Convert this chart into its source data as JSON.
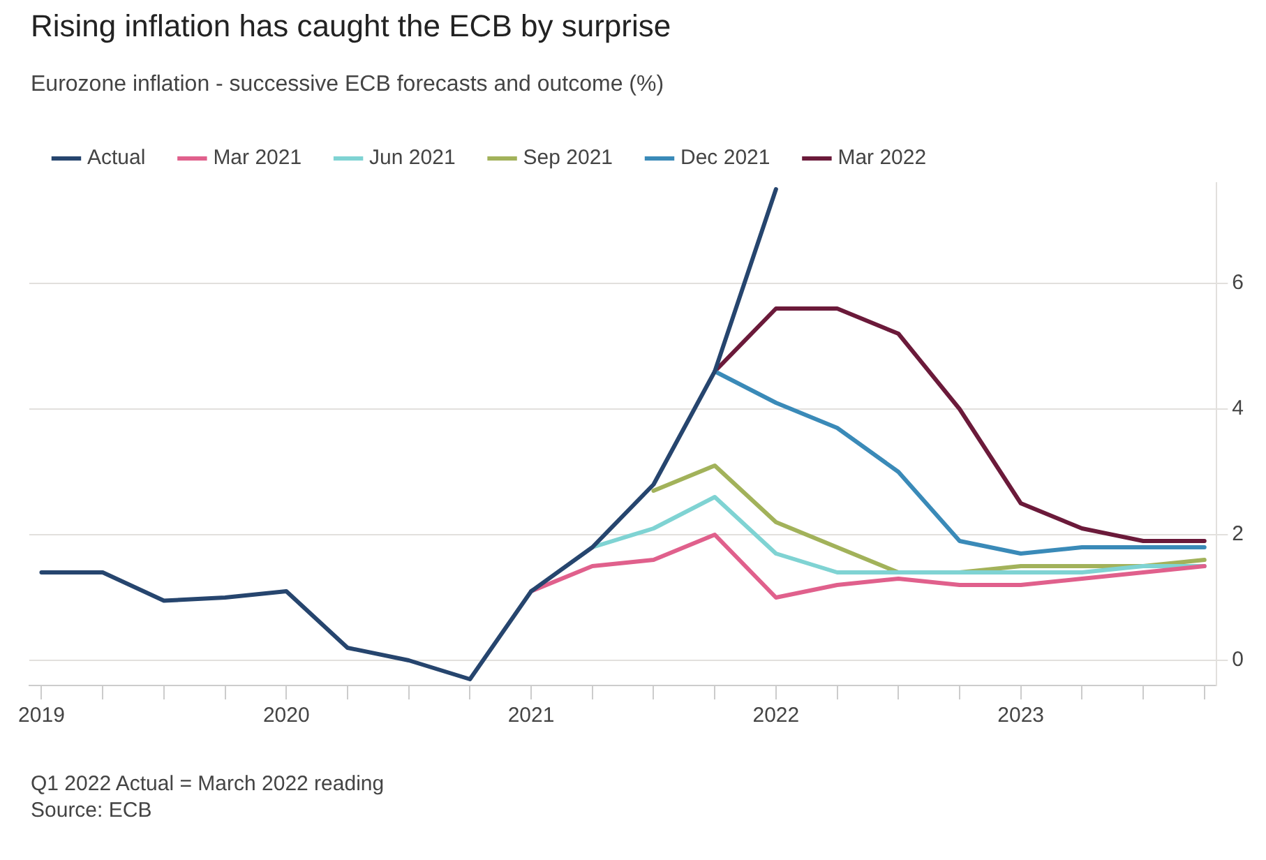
{
  "chart_data": {
    "type": "line",
    "title": "Rising inflation has caught the ECB by surprise",
    "subtitle": "Eurozone inflation - successive ECB forecasts and outcome (%)",
    "annotations": [
      "Q1 2022 Actual = March 2022 reading",
      "Source: ECB"
    ],
    "series": [
      {
        "name": "Actual",
        "color": "#26456e",
        "x": [
          2019,
          2019.25,
          2019.5,
          2019.75,
          2020,
          2020.25,
          2020.5,
          2020.75,
          2021,
          2021.25,
          2021.5,
          2021.75,
          2022
        ],
        "values": [
          1.4,
          1.4,
          0.95,
          1.0,
          1.1,
          0.2,
          0.0,
          -0.3,
          1.1,
          1.8,
          2.8,
          4.6,
          7.5
        ]
      },
      {
        "name": "Mar 2021",
        "color": "#e0608c",
        "x": [
          2021,
          2021.25,
          2021.5,
          2021.75,
          2022,
          2022.25,
          2022.5,
          2022.75,
          2023,
          2023.25,
          2023.5,
          2023.75
        ],
        "values": [
          1.1,
          1.5,
          1.6,
          2.0,
          1.0,
          1.2,
          1.3,
          1.2,
          1.2,
          1.3,
          1.4,
          1.5
        ]
      },
      {
        "name": "Jun 2021",
        "color": "#7fd3d3",
        "x": [
          2021.25,
          2021.5,
          2021.75,
          2022,
          2022.25,
          2022.5,
          2022.75,
          2023,
          2023.25,
          2023.5,
          2023.75
        ],
        "values": [
          1.8,
          2.1,
          2.6,
          1.7,
          1.4,
          1.4,
          1.4,
          1.4,
          1.4,
          1.5,
          1.5
        ]
      },
      {
        "name": "Sep 2021",
        "color": "#a2b25a",
        "x": [
          2021.5,
          2021.75,
          2022,
          2022.25,
          2022.5,
          2022.75,
          2023,
          2023.25,
          2023.5,
          2023.75
        ],
        "values": [
          2.7,
          3.1,
          2.2,
          1.8,
          1.4,
          1.4,
          1.5,
          1.5,
          1.5,
          1.6
        ]
      },
      {
        "name": "Dec 2021",
        "color": "#3a8ab8",
        "x": [
          2021.75,
          2022,
          2022.25,
          2022.5,
          2022.75,
          2023,
          2023.25,
          2023.5,
          2023.75
        ],
        "values": [
          4.6,
          4.1,
          3.7,
          3.0,
          1.9,
          1.7,
          1.8,
          1.8,
          1.8
        ]
      },
      {
        "name": "Mar 2022",
        "color": "#6b1a3a",
        "x": [
          2021.75,
          2022,
          2022.25,
          2022.5,
          2022.75,
          2023,
          2023.25,
          2023.5,
          2023.75
        ],
        "values": [
          4.6,
          5.6,
          5.6,
          5.2,
          4.0,
          2.5,
          2.1,
          1.9,
          1.9
        ]
      }
    ],
    "xlim": [
      2018.95,
      2023.8
    ],
    "xticks": [
      2019,
      {
        "value": 2019.25,
        "label": null
      },
      {
        "value": 2019.5,
        "label": null
      },
      {
        "value": 2019.75,
        "label": null
      },
      2020,
      {
        "value": 2020.25,
        "label": null
      },
      {
        "value": 2020.5,
        "label": null
      },
      {
        "value": 2020.75,
        "label": null
      },
      2021,
      {
        "value": 2021.25,
        "label": null
      },
      {
        "value": 2021.5,
        "label": null
      },
      {
        "value": 2021.75,
        "label": null
      },
      2022,
      {
        "value": 2022.25,
        "label": null
      },
      {
        "value": 2022.5,
        "label": null
      },
      {
        "value": 2022.75,
        "label": null
      },
      2023,
      {
        "value": 2023.25,
        "label": null
      },
      {
        "value": 2023.5,
        "label": null
      },
      {
        "value": 2023.75,
        "label": null
      }
    ],
    "ylim": [
      -0.4,
      7.6
    ],
    "yticks": [
      0,
      2,
      4,
      6
    ],
    "grid": "y",
    "legend": "top left",
    "marker": "none",
    "line_style": "solid"
  }
}
